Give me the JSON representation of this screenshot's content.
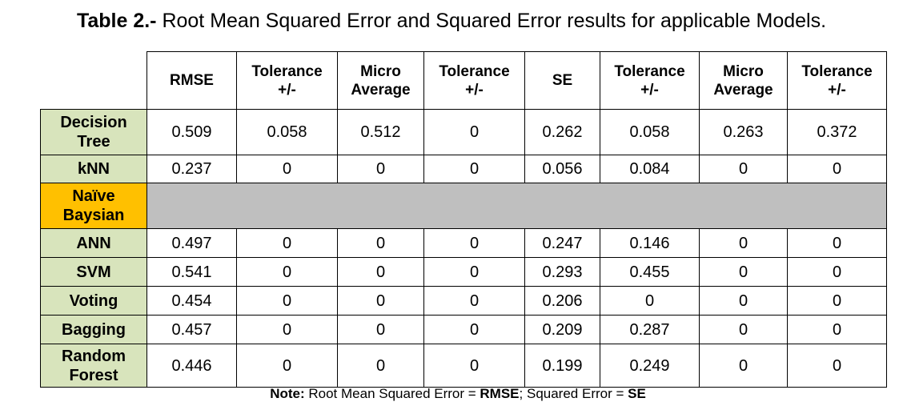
{
  "caption": {
    "prefix": "Table 2.-",
    "text": " Root Mean Squared Error and Squared Error results for applicable Models."
  },
  "colors": {
    "model_label_bg": "#d8e4bc",
    "highlight_label_bg": "#ffc000",
    "na_row_bg": "#bfbfbf"
  },
  "table": {
    "headers": [
      "RMSE",
      "Tolerance +/-",
      "Micro Average",
      "Tolerance +/-",
      "SE",
      "Tolerance +/-",
      "Micro Average",
      "Tolerance +/-"
    ],
    "rows": [
      {
        "label": "Decision Tree",
        "values": [
          "0.509",
          "0.058",
          "0.512",
          "0",
          "0.262",
          "0.058",
          "0.263",
          "0.372"
        ]
      },
      {
        "label": "kNN",
        "values": [
          "0.237",
          "0",
          "0",
          "0",
          "0.056",
          "0.084",
          "0",
          "0"
        ]
      },
      {
        "label": "Naïve Baysian",
        "values": [],
        "highlight": true
      },
      {
        "label": "ANN",
        "values": [
          "0.497",
          "0",
          "0",
          "0",
          "0.247",
          "0.146",
          "0",
          "0"
        ]
      },
      {
        "label": "SVM",
        "values": [
          "0.541",
          "0",
          "0",
          "0",
          "0.293",
          "0.455",
          "0",
          "0"
        ]
      },
      {
        "label": "Voting",
        "values": [
          "0.454",
          "0",
          "0",
          "0",
          "0.206",
          "0",
          "0",
          "0"
        ]
      },
      {
        "label": "Bagging",
        "values": [
          "0.457",
          "0",
          "0",
          "0",
          "0.209",
          "0.287",
          "0",
          "0"
        ]
      },
      {
        "label": "Random Forest",
        "values": [
          "0.446",
          "0",
          "0",
          "0",
          "0.199",
          "0.249",
          "0",
          "0"
        ]
      }
    ]
  },
  "note": {
    "prefix": "Note:",
    "text1": " Root Mean Squared Error = ",
    "abbr1": "RMSE",
    "text2": "; Squared Error = ",
    "abbr2": "SE"
  }
}
